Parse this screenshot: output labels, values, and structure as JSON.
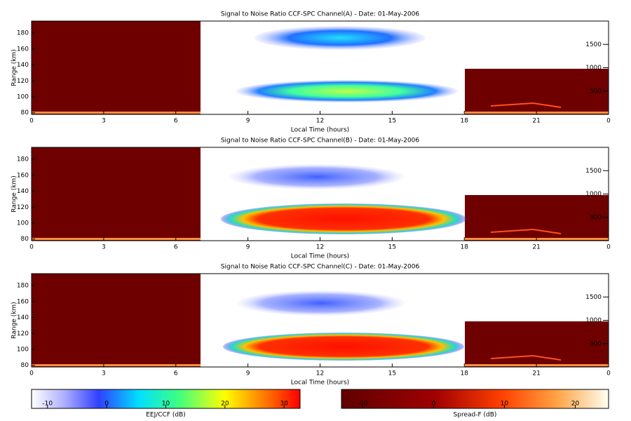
{
  "chart_data": [
    {
      "type": "heatmap",
      "title": "Signal to Noise Ratio CCF-SPC Channel(A) - Date: 01-May-2006",
      "xlabel": "Local Time (hours)",
      "ylabel": "Range (km)",
      "xlim": [
        0,
        24
      ],
      "xticks": [
        0,
        3,
        6,
        9,
        12,
        15,
        18,
        21,
        {
          "value": 24,
          "label": "0"
        }
      ],
      "ylim": [
        78,
        195
      ],
      "yticks": [
        80,
        100,
        120,
        140,
        160,
        180
      ],
      "y2lim": [
        0,
        2000
      ],
      "y2ticks": [
        500,
        1000,
        1500
      ]
    },
    {
      "type": "heatmap",
      "title": "Signal to Noise Ratio CCF-SPC Channel(B) - Date: 01-May-2006",
      "xlabel": "Local Time (hours)",
      "ylabel": "Range (km)",
      "xlim": [
        0,
        24
      ],
      "xticks": [
        0,
        3,
        6,
        9,
        12,
        15,
        18,
        21,
        {
          "value": 24,
          "label": "0"
        }
      ],
      "ylim": [
        78,
        195
      ],
      "yticks": [
        80,
        100,
        120,
        140,
        160,
        180
      ],
      "y2lim": [
        0,
        2000
      ],
      "y2ticks": [
        500,
        1000,
        1500
      ]
    },
    {
      "type": "heatmap",
      "title": "Signal to Noise Ratio CCF-SPC Channel(C) - Date: 01-May-2006",
      "xlabel": "Local Time (hours)",
      "ylabel": "Range (km)",
      "xlim": [
        0,
        24
      ],
      "xticks": [
        0,
        3,
        6,
        9,
        12,
        15,
        18,
        21,
        {
          "value": 24,
          "label": "0"
        }
      ],
      "ylim": [
        78,
        195
      ],
      "yticks": [
        80,
        100,
        120,
        140,
        160,
        180
      ],
      "y2lim": [
        0,
        2000
      ],
      "y2ticks": [
        500,
        1000,
        1500
      ]
    }
  ],
  "colorbars": [
    {
      "label": "EEJ/CCF (dB)",
      "clim": [
        -12.7,
        32.7
      ],
      "ticks": [
        -10,
        0,
        10,
        20,
        30
      ]
    },
    {
      "label": "Spread-F (dB)",
      "clim": [
        -13,
        24.7
      ],
      "ticks": [
        -10,
        0,
        10,
        20
      ]
    }
  ]
}
